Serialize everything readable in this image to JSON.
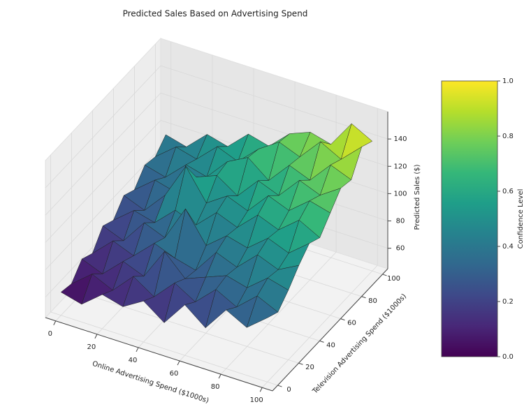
{
  "chart_data": {
    "type": "surface3d",
    "title": "Predicted Sales Based on Advertising Spend",
    "x_label": "Online Advertising Spend ($1000s)",
    "y_label": "Television Advertising Spend ($1000s)",
    "z_label": "Predicted Sales ($)",
    "x": [
      0,
      10,
      20,
      30,
      40,
      50,
      60,
      70,
      80,
      90,
      100
    ],
    "y": [
      0,
      10,
      20,
      30,
      40,
      50,
      60,
      70,
      80,
      90,
      100
    ],
    "z": [
      [
        62,
        58,
        70,
        66,
        75,
        64,
        82,
        70,
        88,
        80,
        92
      ],
      [
        60,
        72,
        65,
        80,
        70,
        85,
        76,
        90,
        82,
        95,
        88
      ],
      [
        70,
        64,
        78,
        72,
        95,
        80,
        86,
        92,
        88,
        100,
        96
      ],
      [
        66,
        80,
        74,
        88,
        82,
        78,
        96,
        90,
        104,
        98,
        106
      ],
      [
        78,
        72,
        90,
        84,
        110,
        88,
        100,
        96,
        108,
        102,
        114
      ],
      [
        74,
        86,
        82,
        96,
        90,
        104,
        98,
        112,
        106,
        118,
        110
      ],
      [
        84,
        78,
        94,
        120,
        98,
        108,
        102,
        118,
        112,
        124,
        120
      ],
      [
        80,
        92,
        88,
        104,
        110,
        100,
        116,
        110,
        126,
        120,
        130
      ],
      [
        90,
        86,
        100,
        96,
        112,
        120,
        108,
        124,
        118,
        134,
        128
      ],
      [
        88,
        100,
        96,
        110,
        104,
        118,
        128,
        122,
        138,
        130,
        144
      ],
      [
        96,
        92,
        106,
        102,
        116,
        112,
        126,
        132,
        128,
        148,
        140
      ]
    ],
    "xlim": [
      -5,
      105
    ],
    "ylim": [
      -5,
      105
    ],
    "zlim": [
      45,
      160
    ],
    "xticks": [
      0,
      20,
      40,
      60,
      80,
      100
    ],
    "yticks": [
      0,
      20,
      40,
      60,
      80,
      100
    ],
    "zticks": [
      60,
      80,
      100,
      120,
      140
    ],
    "colormap": [
      "#440154",
      "#482878",
      "#3e4989",
      "#31688e",
      "#26828e",
      "#1f9e89",
      "#35b779",
      "#6ece58",
      "#b5de2b",
      "#fde725"
    ],
    "edge_color": "#222222",
    "colorbar": {
      "label": "Confidence Level",
      "lim": [
        0,
        1
      ],
      "ticks": [
        {
          "value": 0,
          "label": "0.0"
        },
        0.2,
        0.4,
        0.6,
        0.8,
        {
          "value": 1,
          "label": "1.0"
        }
      ]
    },
    "grid": true
  }
}
